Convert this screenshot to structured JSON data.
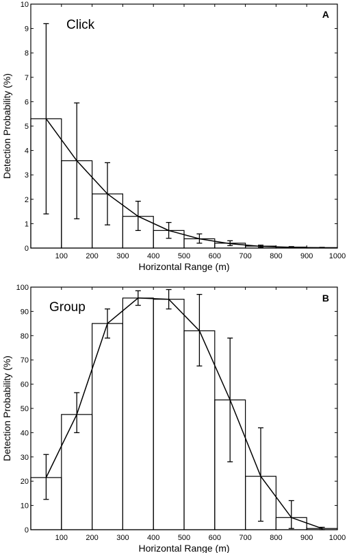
{
  "chart_data": [
    {
      "type": "bar",
      "panel_letter": "A",
      "title": "Click",
      "xlabel": "Horizontal Range (m)",
      "ylabel": "Detection Probability (%)",
      "xlim": [
        0,
        1000
      ],
      "ylim": [
        0,
        10
      ],
      "xticks": [
        100,
        200,
        300,
        400,
        500,
        600,
        700,
        800,
        900,
        1000
      ],
      "yticks": [
        0,
        1,
        2,
        3,
        4,
        5,
        6,
        7,
        8,
        9,
        10
      ],
      "bin_width": 100,
      "categories": [
        50,
        150,
        250,
        350,
        450,
        550,
        650,
        750,
        850,
        950
      ],
      "values": [
        5.3,
        3.58,
        2.22,
        1.3,
        0.72,
        0.38,
        0.2,
        0.08,
        0.04,
        0.02
      ],
      "error_low": [
        1.4,
        1.2,
        0.95,
        0.72,
        0.4,
        0.2,
        0.1,
        0.03,
        0.02,
        0.01
      ],
      "error_high": [
        9.2,
        5.95,
        3.5,
        1.92,
        1.05,
        0.58,
        0.3,
        0.12,
        0.06,
        0.03
      ],
      "fit": [
        5.3,
        3.58,
        2.22,
        1.3,
        0.72,
        0.38,
        0.18,
        0.07,
        0.03,
        0.01
      ],
      "grid": false,
      "legend": "none"
    },
    {
      "type": "bar",
      "panel_letter": "B",
      "title": "Group",
      "xlabel": "Horizontal Range (m)",
      "ylabel": "Detection Probability (%)",
      "xlim": [
        0,
        1000
      ],
      "ylim": [
        0,
        100
      ],
      "xticks": [
        100,
        200,
        300,
        400,
        500,
        600,
        700,
        800,
        900,
        1000
      ],
      "yticks": [
        0,
        10,
        20,
        30,
        40,
        50,
        60,
        70,
        80,
        90,
        100
      ],
      "bin_width": 100,
      "categories": [
        50,
        150,
        250,
        350,
        450,
        550,
        650,
        750,
        850,
        950
      ],
      "values": [
        21.5,
        47.5,
        85,
        95.5,
        95,
        82,
        53.5,
        22,
        5,
        0.5
      ],
      "error_low": [
        12.5,
        40,
        79,
        92.5,
        91,
        67.5,
        28,
        3.5,
        0.5,
        0
      ],
      "error_high": [
        31,
        56.5,
        91,
        98.5,
        99,
        97,
        79,
        42,
        12,
        1
      ],
      "fit": [
        21.5,
        47.5,
        85,
        95.5,
        95,
        82,
        53.5,
        22,
        5,
        0.5
      ],
      "grid": false,
      "legend": "none"
    }
  ]
}
